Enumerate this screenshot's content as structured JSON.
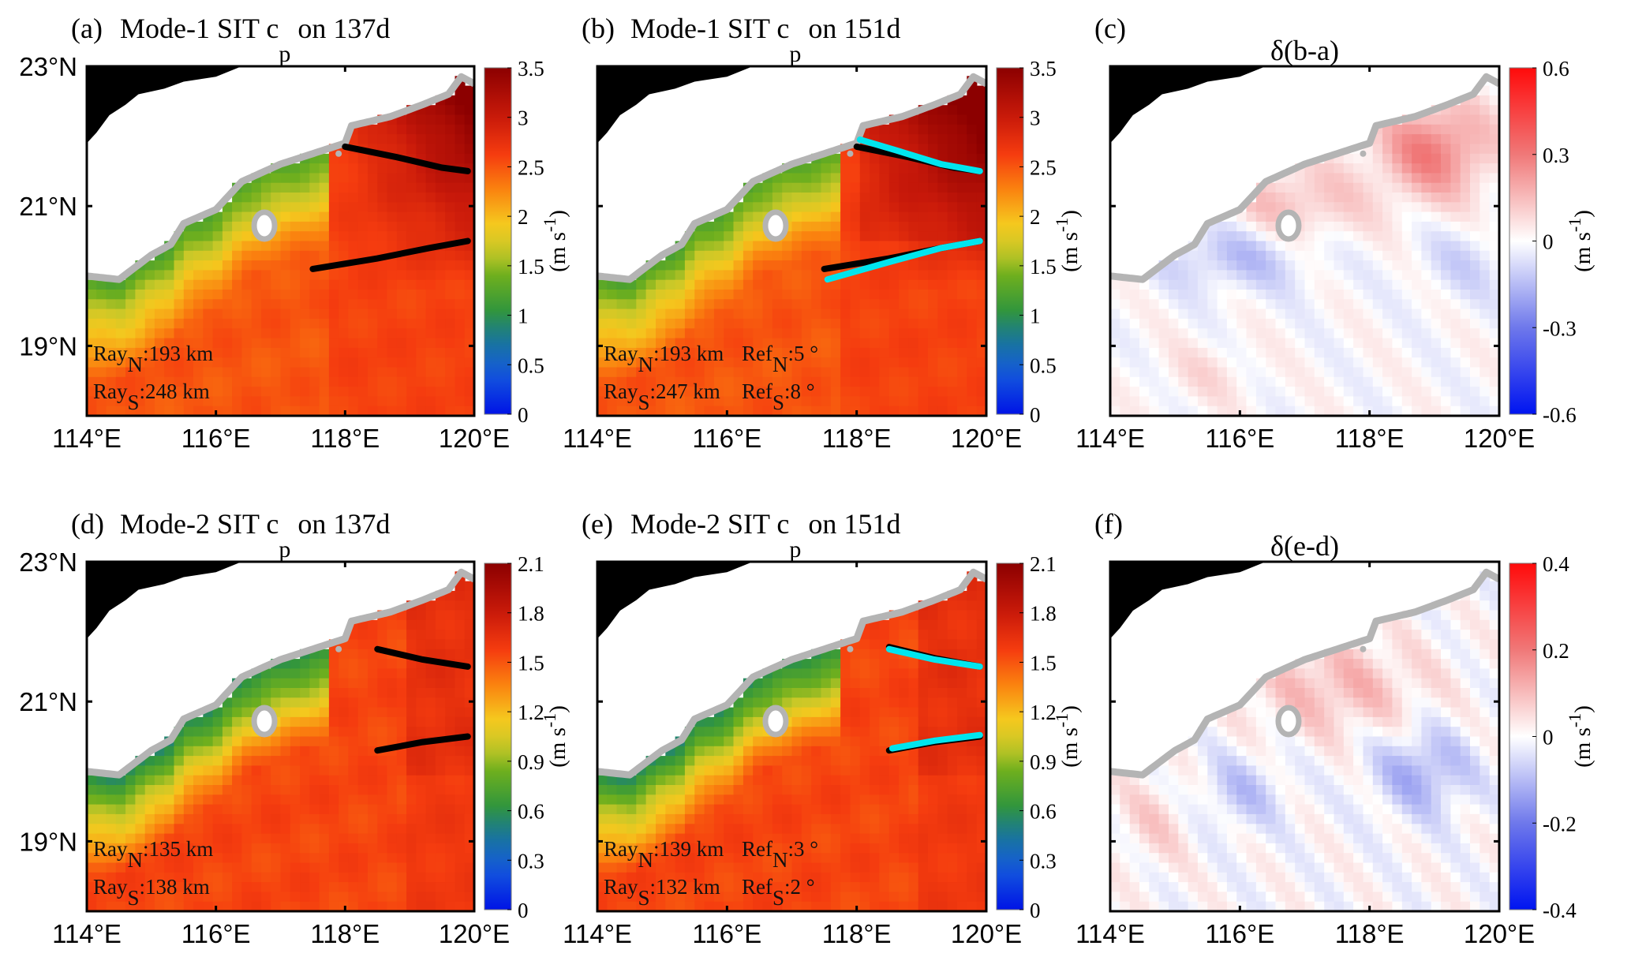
{
  "chart_data": [
    {
      "id": "a",
      "type": "heatmap",
      "panel_label": "(a)",
      "title": "Mode-1 SIT c",
      "title_subscript": "p",
      "title_suffix": " on 137d",
      "xlabel": "",
      "ylabel": "",
      "xlim": [
        114,
        120
      ],
      "ylim": [
        18,
        23
      ],
      "xticks": [
        "114°E",
        "116°E",
        "118°E",
        "120°E"
      ],
      "yticks": [
        "19°N",
        "21°N",
        "23°N"
      ],
      "ytick_values": [
        19,
        21,
        23
      ],
      "xtick_values": [
        114,
        116,
        118,
        120
      ],
      "show_yticklabels": true,
      "colormap": "jet-like",
      "clim": [
        0,
        3.5
      ],
      "colorbar_ticks": [
        "0",
        "0.5",
        "1",
        "1.5",
        "2",
        "2.5",
        "3",
        "3.5"
      ],
      "colorbar_label": "(m s",
      "colorbar_label_sup": "-1",
      "colorbar_label_end": ")",
      "field": "mode1_137",
      "rays": [
        {
          "name": "ray-north",
          "color": "#000000",
          "points": [
            [
              118.0,
              21.85
            ],
            [
              118.8,
              21.7
            ],
            [
              119.5,
              21.55
            ],
            [
              119.9,
              21.5
            ]
          ]
        },
        {
          "name": "ray-south",
          "color": "#000000",
          "points": [
            [
              117.5,
              20.1
            ],
            [
              118.5,
              20.25
            ],
            [
              119.3,
              20.4
            ],
            [
              119.9,
              20.5
            ]
          ]
        }
      ],
      "annotations": [
        {
          "base": "Ray",
          "sub": "N",
          "text": ":193 km"
        },
        {
          "base": "Ray",
          "sub": "S",
          "text": ":248 km"
        }
      ]
    },
    {
      "id": "b",
      "type": "heatmap",
      "panel_label": "(b)",
      "title": "Mode-1 SIT c",
      "title_subscript": "p",
      "title_suffix": " on 151d",
      "xlim": [
        114,
        120
      ],
      "ylim": [
        18,
        23
      ],
      "xticks": [
        "114°E",
        "116°E",
        "118°E",
        "120°E"
      ],
      "yticks": [],
      "ytick_values": [
        19,
        21,
        23
      ],
      "xtick_values": [
        114,
        116,
        118,
        120
      ],
      "show_yticklabels": false,
      "colormap": "jet-like",
      "clim": [
        0,
        3.5
      ],
      "colorbar_ticks": [
        "0",
        "0.5",
        "1",
        "1.5",
        "2",
        "2.5",
        "3",
        "3.5"
      ],
      "colorbar_label": "(m s",
      "colorbar_label_sup": "-1",
      "colorbar_label_end": ")",
      "field": "mode1_151",
      "rays": [
        {
          "name": "ray-north-137d",
          "color": "#000000",
          "points": [
            [
              118.0,
              21.85
            ],
            [
              118.8,
              21.7
            ],
            [
              119.5,
              21.55
            ],
            [
              119.9,
              21.5
            ]
          ]
        },
        {
          "name": "ray-south-137d",
          "color": "#000000",
          "points": [
            [
              117.5,
              20.1
            ],
            [
              118.5,
              20.25
            ],
            [
              119.3,
              20.4
            ],
            [
              119.9,
              20.5
            ]
          ]
        },
        {
          "name": "ray-north-151d",
          "color": "#00e5ee",
          "points": [
            [
              118.05,
              21.95
            ],
            [
              118.6,
              21.8
            ],
            [
              119.3,
              21.6
            ],
            [
              119.9,
              21.5
            ]
          ]
        },
        {
          "name": "ray-south-151d",
          "color": "#00e5ee",
          "points": [
            [
              117.55,
              19.95
            ],
            [
              118.5,
              20.2
            ],
            [
              119.3,
              20.4
            ],
            [
              119.9,
              20.5
            ]
          ]
        }
      ],
      "annotations": [
        {
          "base": "Ray",
          "sub": "N",
          "text": ":193 km"
        },
        {
          "base": "Ray",
          "sub": "S",
          "text": ":247 km"
        },
        {
          "base": "Ref",
          "sub": "N",
          "text": ":5 °"
        },
        {
          "base": "Ref",
          "sub": "S",
          "text": ":8 °"
        }
      ]
    },
    {
      "id": "c",
      "type": "heatmap",
      "panel_label": "(c)",
      "title": "δ(b-a)",
      "title_subscript": "",
      "title_suffix": "",
      "xlim": [
        114,
        120
      ],
      "ylim": [
        18,
        23
      ],
      "xticks": [
        "114°E",
        "116°E",
        "118°E",
        "120°E"
      ],
      "yticks": [],
      "ytick_values": [
        19,
        21,
        23
      ],
      "xtick_values": [
        114,
        116,
        118,
        120
      ],
      "show_yticklabels": false,
      "colormap": "blue-white-red",
      "clim": [
        -0.6,
        0.6
      ],
      "colorbar_ticks": [
        "-0.6",
        "-0.3",
        "0",
        "0.3",
        "0.6"
      ],
      "colorbar_label": "(m s",
      "colorbar_label_sup": "-1",
      "colorbar_label_end": ")",
      "field": "diff1",
      "rays": [],
      "annotations": []
    },
    {
      "id": "d",
      "type": "heatmap",
      "panel_label": "(d)",
      "title": "Mode-2 SIT c",
      "title_subscript": "p",
      "title_suffix": " on 137d",
      "xlim": [
        114,
        120
      ],
      "ylim": [
        18,
        23
      ],
      "xticks": [
        "114°E",
        "116°E",
        "118°E",
        "120°E"
      ],
      "yticks": [
        "19°N",
        "21°N",
        "23°N"
      ],
      "ytick_values": [
        19,
        21,
        23
      ],
      "xtick_values": [
        114,
        116,
        118,
        120
      ],
      "show_yticklabels": true,
      "colormap": "jet-like",
      "clim": [
        0,
        2.1
      ],
      "colorbar_ticks": [
        "0",
        "0.3",
        "0.6",
        "0.9",
        "1.2",
        "1.5",
        "1.8",
        "2.1"
      ],
      "colorbar_label": "(m s",
      "colorbar_label_sup": "-1",
      "colorbar_label_end": ")",
      "field": "mode2_137",
      "rays": [
        {
          "name": "ray-north",
          "color": "#000000",
          "points": [
            [
              118.5,
              21.75
            ],
            [
              119.2,
              21.6
            ],
            [
              119.9,
              21.5
            ]
          ]
        },
        {
          "name": "ray-south",
          "color": "#000000",
          "points": [
            [
              118.5,
              20.3
            ],
            [
              119.2,
              20.42
            ],
            [
              119.9,
              20.5
            ]
          ]
        }
      ],
      "annotations": [
        {
          "base": "Ray",
          "sub": "N",
          "text": ":135 km"
        },
        {
          "base": "Ray",
          "sub": "S",
          "text": ":138 km"
        }
      ]
    },
    {
      "id": "e",
      "type": "heatmap",
      "panel_label": "(e)",
      "title": "Mode-2 SIT c",
      "title_subscript": "p",
      "title_suffix": " on 151d",
      "xlim": [
        114,
        120
      ],
      "ylim": [
        18,
        23
      ],
      "xticks": [
        "114°E",
        "116°E",
        "118°E",
        "120°E"
      ],
      "yticks": [],
      "ytick_values": [
        19,
        21,
        23
      ],
      "xtick_values": [
        114,
        116,
        118,
        120
      ],
      "show_yticklabels": false,
      "colormap": "jet-like",
      "clim": [
        0,
        2.1
      ],
      "colorbar_ticks": [
        "0",
        "0.3",
        "0.6",
        "0.9",
        "1.2",
        "1.5",
        "1.8",
        "2.1"
      ],
      "colorbar_label": "(m s",
      "colorbar_label_sup": "-1",
      "colorbar_label_end": ")",
      "field": "mode2_151",
      "rays": [
        {
          "name": "ray-north-137d",
          "color": "#000000",
          "points": [
            [
              118.5,
              21.78
            ],
            [
              119.2,
              21.62
            ],
            [
              119.9,
              21.5
            ]
          ]
        },
        {
          "name": "ray-south-137d",
          "color": "#000000",
          "points": [
            [
              118.5,
              20.3
            ],
            [
              119.2,
              20.42
            ],
            [
              119.9,
              20.5
            ]
          ]
        },
        {
          "name": "ray-north-151d",
          "color": "#00e5ee",
          "points": [
            [
              118.5,
              21.75
            ],
            [
              119.2,
              21.6
            ],
            [
              119.9,
              21.5
            ]
          ]
        },
        {
          "name": "ray-south-151d",
          "color": "#00e5ee",
          "points": [
            [
              118.55,
              20.33
            ],
            [
              119.2,
              20.44
            ],
            [
              119.9,
              20.52
            ]
          ]
        }
      ],
      "annotations": [
        {
          "base": "Ray",
          "sub": "N",
          "text": ":139 km"
        },
        {
          "base": "Ray",
          "sub": "S",
          "text": ":132 km"
        },
        {
          "base": "Ref",
          "sub": "N",
          "text": ":3 °"
        },
        {
          "base": "Ref",
          "sub": "S",
          "text": ":2 °"
        }
      ]
    },
    {
      "id": "f",
      "type": "heatmap",
      "panel_label": "(f)",
      "title": "δ(e-d)",
      "title_subscript": "",
      "title_suffix": "",
      "xlim": [
        114,
        120
      ],
      "ylim": [
        18,
        23
      ],
      "xticks": [
        "114°E",
        "116°E",
        "118°E",
        "120°E"
      ],
      "yticks": [],
      "ytick_values": [
        19,
        21,
        23
      ],
      "xtick_values": [
        114,
        116,
        118,
        120
      ],
      "show_yticklabels": false,
      "colormap": "blue-white-red",
      "clim": [
        -0.4,
        0.4
      ],
      "colorbar_ticks": [
        "-0.4",
        "-0.2",
        "0",
        "0.2",
        "0.4"
      ],
      "colorbar_label": "(m s",
      "colorbar_label_sup": "-1",
      "colorbar_label_end": ")",
      "field": "diff2",
      "rays": [],
      "annotations": []
    }
  ],
  "colors": {
    "land": "#000000",
    "shelf_mask": "#ffffff",
    "isobath": "#b4b4b4",
    "ray_137d": "#000000",
    "ray_151d": "#00e5ee"
  }
}
